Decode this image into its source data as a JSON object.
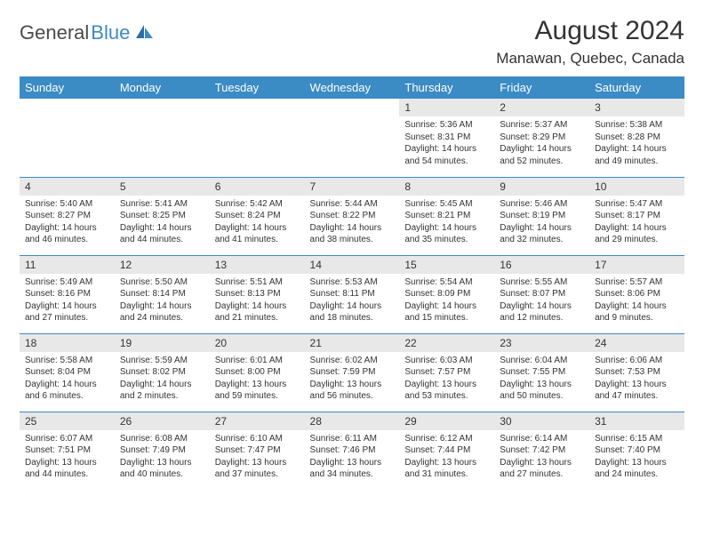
{
  "brand": {
    "part1": "General",
    "part2": "Blue"
  },
  "title": "August 2024",
  "location": "Manawan, Quebec, Canada",
  "colors": {
    "header_bg": "#3b8bc4",
    "header_text": "#ffffff",
    "daynum_bg": "#e8e8e8",
    "border": "#3b8bc4",
    "text": "#333333",
    "page_bg": "#ffffff"
  },
  "day_headers": [
    "Sunday",
    "Monday",
    "Tuesday",
    "Wednesday",
    "Thursday",
    "Friday",
    "Saturday"
  ],
  "weeks": [
    [
      {
        "day": "",
        "sunrise": "",
        "sunset": "",
        "daylight": ""
      },
      {
        "day": "",
        "sunrise": "",
        "sunset": "",
        "daylight": ""
      },
      {
        "day": "",
        "sunrise": "",
        "sunset": "",
        "daylight": ""
      },
      {
        "day": "",
        "sunrise": "",
        "sunset": "",
        "daylight": ""
      },
      {
        "day": "1",
        "sunrise": "Sunrise: 5:36 AM",
        "sunset": "Sunset: 8:31 PM",
        "daylight": "Daylight: 14 hours and 54 minutes."
      },
      {
        "day": "2",
        "sunrise": "Sunrise: 5:37 AM",
        "sunset": "Sunset: 8:29 PM",
        "daylight": "Daylight: 14 hours and 52 minutes."
      },
      {
        "day": "3",
        "sunrise": "Sunrise: 5:38 AM",
        "sunset": "Sunset: 8:28 PM",
        "daylight": "Daylight: 14 hours and 49 minutes."
      }
    ],
    [
      {
        "day": "4",
        "sunrise": "Sunrise: 5:40 AM",
        "sunset": "Sunset: 8:27 PM",
        "daylight": "Daylight: 14 hours and 46 minutes."
      },
      {
        "day": "5",
        "sunrise": "Sunrise: 5:41 AM",
        "sunset": "Sunset: 8:25 PM",
        "daylight": "Daylight: 14 hours and 44 minutes."
      },
      {
        "day": "6",
        "sunrise": "Sunrise: 5:42 AM",
        "sunset": "Sunset: 8:24 PM",
        "daylight": "Daylight: 14 hours and 41 minutes."
      },
      {
        "day": "7",
        "sunrise": "Sunrise: 5:44 AM",
        "sunset": "Sunset: 8:22 PM",
        "daylight": "Daylight: 14 hours and 38 minutes."
      },
      {
        "day": "8",
        "sunrise": "Sunrise: 5:45 AM",
        "sunset": "Sunset: 8:21 PM",
        "daylight": "Daylight: 14 hours and 35 minutes."
      },
      {
        "day": "9",
        "sunrise": "Sunrise: 5:46 AM",
        "sunset": "Sunset: 8:19 PM",
        "daylight": "Daylight: 14 hours and 32 minutes."
      },
      {
        "day": "10",
        "sunrise": "Sunrise: 5:47 AM",
        "sunset": "Sunset: 8:17 PM",
        "daylight": "Daylight: 14 hours and 29 minutes."
      }
    ],
    [
      {
        "day": "11",
        "sunrise": "Sunrise: 5:49 AM",
        "sunset": "Sunset: 8:16 PM",
        "daylight": "Daylight: 14 hours and 27 minutes."
      },
      {
        "day": "12",
        "sunrise": "Sunrise: 5:50 AM",
        "sunset": "Sunset: 8:14 PM",
        "daylight": "Daylight: 14 hours and 24 minutes."
      },
      {
        "day": "13",
        "sunrise": "Sunrise: 5:51 AM",
        "sunset": "Sunset: 8:13 PM",
        "daylight": "Daylight: 14 hours and 21 minutes."
      },
      {
        "day": "14",
        "sunrise": "Sunrise: 5:53 AM",
        "sunset": "Sunset: 8:11 PM",
        "daylight": "Daylight: 14 hours and 18 minutes."
      },
      {
        "day": "15",
        "sunrise": "Sunrise: 5:54 AM",
        "sunset": "Sunset: 8:09 PM",
        "daylight": "Daylight: 14 hours and 15 minutes."
      },
      {
        "day": "16",
        "sunrise": "Sunrise: 5:55 AM",
        "sunset": "Sunset: 8:07 PM",
        "daylight": "Daylight: 14 hours and 12 minutes."
      },
      {
        "day": "17",
        "sunrise": "Sunrise: 5:57 AM",
        "sunset": "Sunset: 8:06 PM",
        "daylight": "Daylight: 14 hours and 9 minutes."
      }
    ],
    [
      {
        "day": "18",
        "sunrise": "Sunrise: 5:58 AM",
        "sunset": "Sunset: 8:04 PM",
        "daylight": "Daylight: 14 hours and 6 minutes."
      },
      {
        "day": "19",
        "sunrise": "Sunrise: 5:59 AM",
        "sunset": "Sunset: 8:02 PM",
        "daylight": "Daylight: 14 hours and 2 minutes."
      },
      {
        "day": "20",
        "sunrise": "Sunrise: 6:01 AM",
        "sunset": "Sunset: 8:00 PM",
        "daylight": "Daylight: 13 hours and 59 minutes."
      },
      {
        "day": "21",
        "sunrise": "Sunrise: 6:02 AM",
        "sunset": "Sunset: 7:59 PM",
        "daylight": "Daylight: 13 hours and 56 minutes."
      },
      {
        "day": "22",
        "sunrise": "Sunrise: 6:03 AM",
        "sunset": "Sunset: 7:57 PM",
        "daylight": "Daylight: 13 hours and 53 minutes."
      },
      {
        "day": "23",
        "sunrise": "Sunrise: 6:04 AM",
        "sunset": "Sunset: 7:55 PM",
        "daylight": "Daylight: 13 hours and 50 minutes."
      },
      {
        "day": "24",
        "sunrise": "Sunrise: 6:06 AM",
        "sunset": "Sunset: 7:53 PM",
        "daylight": "Daylight: 13 hours and 47 minutes."
      }
    ],
    [
      {
        "day": "25",
        "sunrise": "Sunrise: 6:07 AM",
        "sunset": "Sunset: 7:51 PM",
        "daylight": "Daylight: 13 hours and 44 minutes."
      },
      {
        "day": "26",
        "sunrise": "Sunrise: 6:08 AM",
        "sunset": "Sunset: 7:49 PM",
        "daylight": "Daylight: 13 hours and 40 minutes."
      },
      {
        "day": "27",
        "sunrise": "Sunrise: 6:10 AM",
        "sunset": "Sunset: 7:47 PM",
        "daylight": "Daylight: 13 hours and 37 minutes."
      },
      {
        "day": "28",
        "sunrise": "Sunrise: 6:11 AM",
        "sunset": "Sunset: 7:46 PM",
        "daylight": "Daylight: 13 hours and 34 minutes."
      },
      {
        "day": "29",
        "sunrise": "Sunrise: 6:12 AM",
        "sunset": "Sunset: 7:44 PM",
        "daylight": "Daylight: 13 hours and 31 minutes."
      },
      {
        "day": "30",
        "sunrise": "Sunrise: 6:14 AM",
        "sunset": "Sunset: 7:42 PM",
        "daylight": "Daylight: 13 hours and 27 minutes."
      },
      {
        "day": "31",
        "sunrise": "Sunrise: 6:15 AM",
        "sunset": "Sunset: 7:40 PM",
        "daylight": "Daylight: 13 hours and 24 minutes."
      }
    ]
  ]
}
